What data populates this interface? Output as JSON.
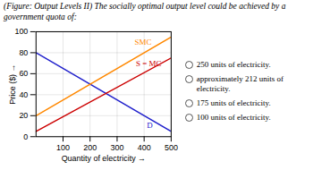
{
  "chart_data": {
    "type": "line",
    "title": "(Figure: Output Levels II) The socially optimal output level could be achieved by a government quota of:",
    "xlabel": "Quantity of electricity",
    "ylabel": "Price ($)",
    "x": [
      0,
      500
    ],
    "series": [
      {
        "color": "#2222cc",
        "values": [
          80,
          5
        ]
      },
      {
        "color": "#ff8800",
        "values": [
          20,
          95
        ]
      },
      {
        "color": "#cc0000",
        "values": [
          5,
          75
        ]
      }
    ],
    "xlim": [
      0,
      500
    ],
    "ylim": [
      0,
      100
    ],
    "xticks": [
      100,
      200,
      300,
      400,
      500
    ],
    "yticks": [
      0,
      20,
      40,
      60,
      80,
      100
    ],
    "grid": true,
    "annotations": [
      {
        "text": "SMC",
        "x": 365,
        "y": 88,
        "color": "#ff8800"
      },
      {
        "text": "S = MC",
        "x": 370,
        "y": 67,
        "color": "#cc0000"
      },
      {
        "text": "D",
        "x": 410,
        "y": 8,
        "color": "#2222cc"
      }
    ],
    "choices": [
      "250 units of electricity.",
      "approximately 212 units of electricity.",
      "175 units of electricity.",
      "100 units of electricity."
    ]
  }
}
